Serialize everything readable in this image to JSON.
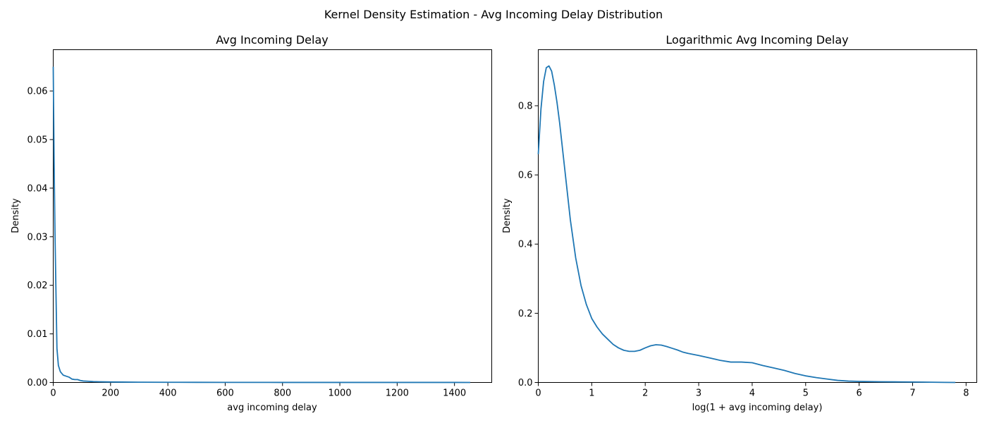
{
  "figure": {
    "suptitle": "Kernel Density Estimation - Avg Incoming Delay Distribution"
  },
  "chart_data": [
    {
      "type": "line",
      "title": "Avg Incoming Delay",
      "xlabel": "avg incoming delay",
      "ylabel": "Density",
      "xlim": [
        0,
        1530
      ],
      "ylim": [
        0,
        0.0685
      ],
      "xticks": [
        0,
        200,
        400,
        600,
        800,
        1000,
        1200,
        1400
      ],
      "xtick_labels": [
        "0",
        "200",
        "400",
        "600",
        "800",
        "1000",
        "1200",
        "1400"
      ],
      "yticks": [
        0,
        0.01,
        0.02,
        0.03,
        0.04,
        0.05,
        0.06
      ],
      "ytick_labels": [
        "0.00",
        "0.01",
        "0.02",
        "0.03",
        "0.04",
        "0.05",
        "0.06"
      ],
      "grid": false,
      "color": "#1f77b4",
      "series": [
        {
          "x": [
            0,
            3,
            6,
            10,
            13,
            18,
            25,
            35,
            45,
            55,
            65,
            75,
            85,
            95,
            105,
            120,
            140,
            160,
            180,
            200,
            240,
            300,
            400,
            500,
            600,
            700,
            800,
            1000,
            1200,
            1400,
            1455
          ],
          "y": [
            0.065,
            0.046,
            0.031,
            0.017,
            0.007,
            0.0035,
            0.0022,
            0.0015,
            0.0013,
            0.0011,
            0.0007,
            0.0006,
            0.0006,
            0.0004,
            0.0003,
            0.00025,
            0.00018,
            0.00015,
            0.00012,
            0.0001,
            8e-05,
            5e-05,
            4e-05,
            3e-05,
            2e-05,
            2e-05,
            1e-05,
            1e-05,
            1e-05,
            1e-05,
            0.0
          ]
        }
      ]
    },
    {
      "type": "line",
      "title": "Logarithmic Avg Incoming Delay",
      "xlabel": "log(1 + avg incoming delay)",
      "ylabel": "Density",
      "xlim": [
        0,
        8.2
      ],
      "ylim": [
        0,
        0.962
      ],
      "xticks": [
        0,
        1,
        2,
        3,
        4,
        5,
        6,
        7,
        8
      ],
      "xtick_labels": [
        "0",
        "1",
        "2",
        "3",
        "4",
        "5",
        "6",
        "7",
        "8"
      ],
      "yticks": [
        0,
        0.2,
        0.4,
        0.6,
        0.8
      ],
      "ytick_labels": [
        "0.0",
        "0.2",
        "0.4",
        "0.6",
        "0.8"
      ],
      "grid": false,
      "color": "#1f77b4",
      "series": [
        {
          "x": [
            0,
            0.05,
            0.1,
            0.15,
            0.2,
            0.25,
            0.3,
            0.35,
            0.4,
            0.5,
            0.6,
            0.7,
            0.8,
            0.9,
            1.0,
            1.1,
            1.2,
            1.3,
            1.4,
            1.5,
            1.6,
            1.7,
            1.8,
            1.9,
            2.0,
            2.1,
            2.2,
            2.3,
            2.4,
            2.5,
            2.6,
            2.7,
            2.8,
            3.0,
            3.2,
            3.4,
            3.6,
            3.8,
            4.0,
            4.2,
            4.4,
            4.6,
            4.8,
            5.0,
            5.2,
            5.4,
            5.6,
            5.8,
            6.0,
            6.4,
            6.8,
            7.2,
            7.6,
            7.8
          ],
          "y": [
            0.66,
            0.79,
            0.87,
            0.91,
            0.915,
            0.9,
            0.86,
            0.81,
            0.75,
            0.61,
            0.47,
            0.36,
            0.28,
            0.225,
            0.185,
            0.16,
            0.14,
            0.125,
            0.11,
            0.1,
            0.093,
            0.09,
            0.09,
            0.093,
            0.1,
            0.106,
            0.109,
            0.108,
            0.104,
            0.099,
            0.094,
            0.088,
            0.084,
            0.078,
            0.071,
            0.064,
            0.059,
            0.059,
            0.057,
            0.049,
            0.042,
            0.035,
            0.026,
            0.019,
            0.014,
            0.01,
            0.006,
            0.004,
            0.003,
            0.002,
            0.0015,
            0.001,
            0.0003,
            0.0
          ]
        }
      ]
    }
  ]
}
